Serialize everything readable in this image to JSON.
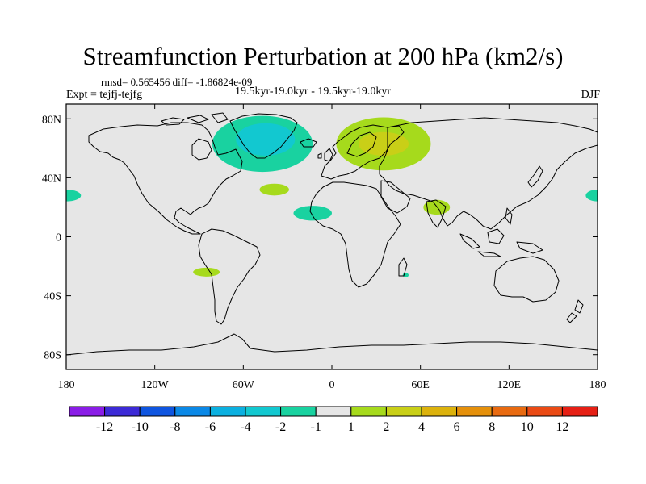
{
  "title": "Streamfunction Perturbation at 200 hPa (km2/s)",
  "stats_line": "rmsd= 0.565456 diff= -1.86824e-09",
  "left_label": "Expt = tejfj-tejfg",
  "center_label": "19.5kyr-19.0kyr - 19.5kyr-19.0kyr",
  "right_label": "DJF",
  "map": {
    "lon_range": [
      -180,
      180
    ],
    "lat_range": [
      -90,
      90
    ],
    "background_color": "#e6e6e6",
    "lat_ticks": [
      {
        "value": 80,
        "label": "80N"
      },
      {
        "value": 40,
        "label": "40N"
      },
      {
        "value": 0,
        "label": "0"
      },
      {
        "value": -40,
        "label": "40S"
      },
      {
        "value": -80,
        "label": "80S"
      }
    ],
    "lon_ticks": [
      {
        "value": -180,
        "label": "180"
      },
      {
        "value": -120,
        "label": "120W"
      },
      {
        "value": -60,
        "label": "60W"
      },
      {
        "value": 0,
        "label": "0"
      },
      {
        "value": 60,
        "label": "60E"
      },
      {
        "value": 120,
        "label": "120E"
      },
      {
        "value": 180,
        "label": "180"
      }
    ],
    "anomalies": [
      {
        "name": "greenland-negative",
        "lon": -47,
        "lat": 63,
        "rlon": 34,
        "rlat": 19,
        "level": "-2",
        "color": "#19d2a0"
      },
      {
        "name": "greenland-core",
        "lon": -45,
        "lat": 66,
        "rlon": 20,
        "rlat": 11,
        "level": "-4",
        "color": "#12c8d0"
      },
      {
        "name": "scandinavia-positive",
        "lon": 35,
        "lat": 63,
        "rlon": 32,
        "rlat": 18,
        "level": "2",
        "color": "#a6da1c"
      },
      {
        "name": "scandinavia-core",
        "lon": 35,
        "lat": 63,
        "rlon": 17,
        "rlat": 8,
        "level": "4",
        "color": "#c9cf17"
      },
      {
        "name": "mid-atlantic-positive",
        "lon": -39,
        "lat": 32,
        "rlon": 10,
        "rlat": 4,
        "level": "2",
        "color": "#a6da1c"
      },
      {
        "name": "west-africa-negative",
        "lon": -13,
        "lat": 16,
        "rlon": 13,
        "rlat": 5,
        "level": "-2",
        "color": "#19d2a0"
      },
      {
        "name": "arabian-sea-positive",
        "lon": 71,
        "lat": 20,
        "rlon": 9,
        "rlat": 5,
        "level": "2",
        "color": "#a6da1c"
      },
      {
        "name": "north-pacific-east-negative",
        "lon": 180,
        "lat": 28,
        "rlon": 8,
        "rlat": 4,
        "level": "-2",
        "color": "#19d2a0"
      },
      {
        "name": "north-pacific-west-negative",
        "lon": -180,
        "lat": 28,
        "rlon": 10,
        "rlat": 4,
        "level": "-2",
        "color": "#19d2a0"
      },
      {
        "name": "south-atlantic-positive",
        "lon": -85,
        "lat": -24,
        "rlon": 9,
        "rlat": 3,
        "level": "2",
        "color": "#a6da1c"
      },
      {
        "name": "madagascar-negative",
        "lon": 50,
        "lat": -26,
        "rlon": 2,
        "rlat": 1.6,
        "level": "-2",
        "color": "#19d2a0"
      }
    ]
  },
  "colorbar": {
    "colors": [
      "#8a1de6",
      "#3c2ad6",
      "#0f55e0",
      "#0a88e6",
      "#0bb0e0",
      "#12c8d0",
      "#19d2a0",
      "#e6e6e6",
      "#a6da1c",
      "#c9cf17",
      "#dcb20c",
      "#e5900a",
      "#e86a10",
      "#ea4a14",
      "#e62015"
    ],
    "labels": [
      "-12",
      "-10",
      "-8",
      "-6",
      "-4",
      "-2",
      "-1",
      "1",
      "2",
      "4",
      "6",
      "8",
      "10",
      "12"
    ]
  }
}
